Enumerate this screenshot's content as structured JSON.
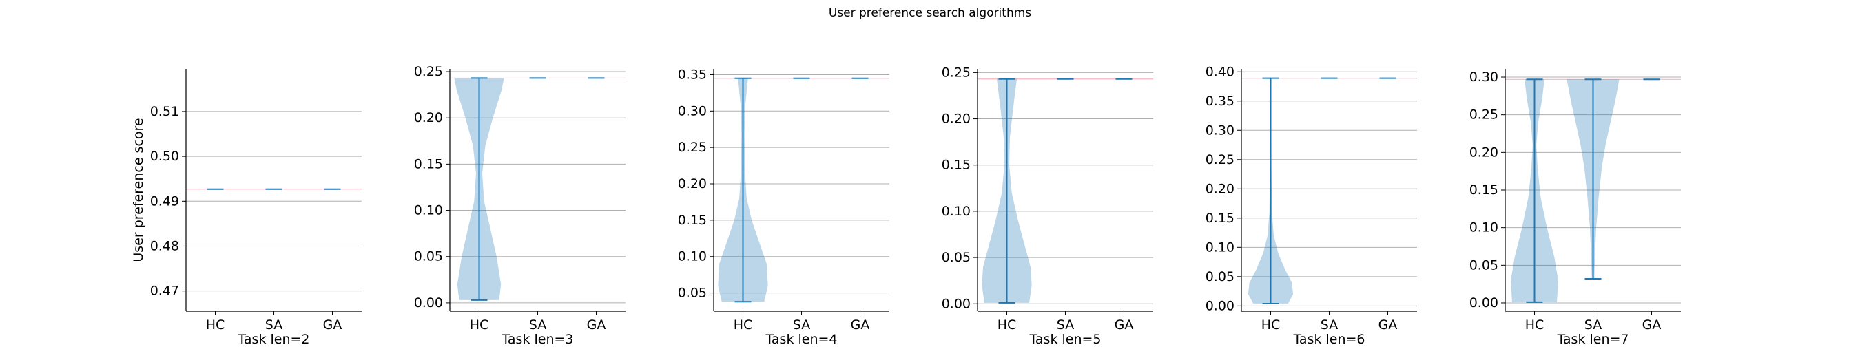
{
  "figure": {
    "suptitle": "User preference search algorithms"
  },
  "colors": {
    "violin_fill": "#1f77b4",
    "violin_line": "#1f77b4",
    "grid": "#b0b0b0",
    "reference_line": "#f4b6c2",
    "axis": "#000000",
    "text": "#000000"
  },
  "chart_data": [
    {
      "type": "violin",
      "title": "",
      "xlabel": "Task len=2",
      "ylabel": "User preference score",
      "categories": [
        "HC",
        "SA",
        "GA"
      ],
      "ylim": [
        0.4655,
        0.5195
      ],
      "yticks": [
        0.47,
        0.48,
        0.49,
        0.5,
        0.51
      ],
      "ytick_labels": [
        "0.47",
        "0.48",
        "0.49",
        "0.50",
        "0.51"
      ],
      "grid": "horizontal",
      "reference_value": 0.4927,
      "violins": [
        {
          "category": "HC",
          "min": 0.4927,
          "max": 0.4927,
          "shape": []
        },
        {
          "category": "SA",
          "min": 0.4927,
          "max": 0.4927,
          "shape": []
        },
        {
          "category": "GA",
          "min": 0.4927,
          "max": 0.4927,
          "shape": []
        }
      ]
    },
    {
      "type": "violin",
      "title": "",
      "xlabel": "Task len=3",
      "ylabel": "",
      "categories": [
        "HC",
        "SA",
        "GA"
      ],
      "ylim": [
        -0.009,
        0.253
      ],
      "yticks": [
        0.0,
        0.05,
        0.1,
        0.15,
        0.2,
        0.25
      ],
      "ytick_labels": [
        "0.00",
        "0.05",
        "0.10",
        "0.15",
        "0.20",
        "0.25"
      ],
      "grid": "horizontal",
      "reference_value": 0.243,
      "violins": [
        {
          "category": "HC",
          "min": 0.003,
          "max": 0.243,
          "shape": [
            [
              0.003,
              0.32
            ],
            [
              0.02,
              0.35
            ],
            [
              0.05,
              0.28
            ],
            [
              0.08,
              0.18
            ],
            [
              0.11,
              0.08
            ],
            [
              0.14,
              0.05
            ],
            [
              0.17,
              0.1
            ],
            [
              0.2,
              0.22
            ],
            [
              0.23,
              0.36
            ],
            [
              0.243,
              0.4
            ]
          ]
        },
        {
          "category": "SA",
          "min": 0.243,
          "max": 0.243,
          "shape": []
        },
        {
          "category": "GA",
          "min": 0.243,
          "max": 0.243,
          "shape": []
        }
      ]
    },
    {
      "type": "violin",
      "title": "",
      "xlabel": "Task len=4",
      "ylabel": "",
      "categories": [
        "HC",
        "SA",
        "GA"
      ],
      "ylim": [
        0.025,
        0.358
      ],
      "yticks": [
        0.05,
        0.1,
        0.15,
        0.2,
        0.25,
        0.3,
        0.35
      ],
      "ytick_labels": [
        "0.05",
        "0.10",
        "0.15",
        "0.20",
        "0.25",
        "0.30",
        "0.35"
      ],
      "grid": "horizontal",
      "reference_value": 0.345,
      "violins": [
        {
          "category": "HC",
          "min": 0.038,
          "max": 0.345,
          "shape": [
            [
              0.038,
              0.34
            ],
            [
              0.06,
              0.4
            ],
            [
              0.09,
              0.38
            ],
            [
              0.12,
              0.26
            ],
            [
              0.15,
              0.14
            ],
            [
              0.18,
              0.06
            ],
            [
              0.22,
              0.03
            ],
            [
              0.27,
              0.025
            ],
            [
              0.31,
              0.04
            ],
            [
              0.345,
              0.08
            ]
          ]
        },
        {
          "category": "SA",
          "min": 0.345,
          "max": 0.345,
          "shape": []
        },
        {
          "category": "GA",
          "min": 0.345,
          "max": 0.345,
          "shape": []
        }
      ]
    },
    {
      "type": "violin",
      "title": "",
      "xlabel": "Task len=5",
      "ylabel": "",
      "categories": [
        "HC",
        "SA",
        "GA"
      ],
      "ylim": [
        -0.008,
        0.254
      ],
      "yticks": [
        0.0,
        0.05,
        0.1,
        0.15,
        0.2,
        0.25
      ],
      "ytick_labels": [
        "0.00",
        "0.05",
        "0.10",
        "0.15",
        "0.20",
        "0.25"
      ],
      "grid": "horizontal",
      "reference_value": 0.243,
      "violins": [
        {
          "category": "HC",
          "min": 0.001,
          "max": 0.243,
          "shape": [
            [
              0.001,
              0.36
            ],
            [
              0.02,
              0.4
            ],
            [
              0.04,
              0.38
            ],
            [
              0.06,
              0.3
            ],
            [
              0.09,
              0.18
            ],
            [
              0.12,
              0.08
            ],
            [
              0.15,
              0.04
            ],
            [
              0.18,
              0.05
            ],
            [
              0.21,
              0.1
            ],
            [
              0.243,
              0.16
            ]
          ]
        },
        {
          "category": "SA",
          "min": 0.243,
          "max": 0.243,
          "shape": []
        },
        {
          "category": "GA",
          "min": 0.243,
          "max": 0.243,
          "shape": []
        }
      ]
    },
    {
      "type": "violin",
      "title": "",
      "xlabel": "Task len=6",
      "ylabel": "",
      "categories": [
        "HC",
        "SA",
        "GA"
      ],
      "ylim": [
        -0.009,
        0.405
      ],
      "yticks": [
        0.0,
        0.05,
        0.1,
        0.15,
        0.2,
        0.25,
        0.3,
        0.35,
        0.4
      ],
      "ytick_labels": [
        "0.00",
        "0.05",
        "0.10",
        "0.15",
        "0.20",
        "0.25",
        "0.30",
        "0.35",
        "0.40"
      ],
      "grid": "horizontal",
      "reference_value": 0.389,
      "violins": [
        {
          "category": "HC",
          "min": 0.004,
          "max": 0.389,
          "shape": [
            [
              0.004,
              0.28
            ],
            [
              0.02,
              0.36
            ],
            [
              0.04,
              0.34
            ],
            [
              0.06,
              0.24
            ],
            [
              0.09,
              0.12
            ],
            [
              0.12,
              0.05
            ],
            [
              0.16,
              0.02
            ],
            [
              0.24,
              0.012
            ],
            [
              0.32,
              0.01
            ],
            [
              0.389,
              0.01
            ]
          ]
        },
        {
          "category": "SA",
          "min": 0.389,
          "max": 0.389,
          "shape": []
        },
        {
          "category": "GA",
          "min": 0.389,
          "max": 0.389,
          "shape": []
        }
      ]
    },
    {
      "type": "violin",
      "title": "",
      "xlabel": "Task len=7",
      "ylabel": "",
      "categories": [
        "HC",
        "SA",
        "GA"
      ],
      "ylim": [
        -0.011,
        0.311
      ],
      "yticks": [
        0.0,
        0.05,
        0.1,
        0.15,
        0.2,
        0.25,
        0.3
      ],
      "ytick_labels": [
        "0.00",
        "0.05",
        "0.10",
        "0.15",
        "0.20",
        "0.25",
        "0.30"
      ],
      "grid": "horizontal",
      "reference_value": 0.297,
      "violins": [
        {
          "category": "HC",
          "min": 0.001,
          "max": 0.297,
          "shape": [
            [
              0.001,
              0.36
            ],
            [
              0.03,
              0.38
            ],
            [
              0.06,
              0.32
            ],
            [
              0.1,
              0.2
            ],
            [
              0.14,
              0.1
            ],
            [
              0.18,
              0.05
            ],
            [
              0.21,
              0.03
            ],
            [
              0.24,
              0.06
            ],
            [
              0.27,
              0.12
            ],
            [
              0.297,
              0.16
            ]
          ]
        },
        {
          "category": "SA",
          "min": 0.032,
          "max": 0.297,
          "shape": [
            [
              0.032,
              0.02
            ],
            [
              0.06,
              0.03
            ],
            [
              0.1,
              0.05
            ],
            [
              0.14,
              0.09
            ],
            [
              0.18,
              0.14
            ],
            [
              0.21,
              0.2
            ],
            [
              0.24,
              0.28
            ],
            [
              0.27,
              0.36
            ],
            [
              0.297,
              0.42
            ]
          ]
        },
        {
          "category": "GA",
          "min": 0.297,
          "max": 0.297,
          "shape": []
        }
      ]
    }
  ]
}
